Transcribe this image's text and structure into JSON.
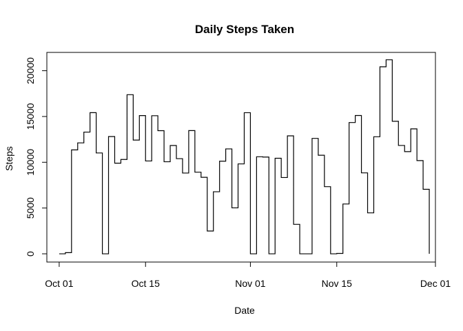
{
  "chart_data": {
    "type": "line",
    "step": true,
    "title": "Daily Steps Taken",
    "xlabel": "Date",
    "ylabel": "Steps",
    "x_ticks": [
      {
        "date": "2012-10-01",
        "label": "Oct 01"
      },
      {
        "date": "2012-10-15",
        "label": "Oct 15"
      },
      {
        "date": "2012-11-01",
        "label": "Nov 01"
      },
      {
        "date": "2012-11-15",
        "label": "Nov 15"
      },
      {
        "date": "2012-12-01",
        "label": "Dec 01"
      }
    ],
    "y_ticks": [
      0,
      5000,
      10000,
      15000,
      20000
    ],
    "xlim": [
      "2012-09-29",
      "2012-12-01"
    ],
    "ylim": [
      -900,
      22000
    ],
    "grid": false,
    "series": [
      {
        "x": [
          "2012-10-01",
          "2012-10-02",
          "2012-10-03",
          "2012-10-04",
          "2012-10-05",
          "2012-10-06",
          "2012-10-07",
          "2012-10-08",
          "2012-10-09",
          "2012-10-10",
          "2012-10-11",
          "2012-10-12",
          "2012-10-13",
          "2012-10-14",
          "2012-10-15",
          "2012-10-16",
          "2012-10-17",
          "2012-10-18",
          "2012-10-19",
          "2012-10-20",
          "2012-10-21",
          "2012-10-22",
          "2012-10-23",
          "2012-10-24",
          "2012-10-25",
          "2012-10-26",
          "2012-10-27",
          "2012-10-28",
          "2012-10-29",
          "2012-10-30",
          "2012-10-31",
          "2012-11-01",
          "2012-11-02",
          "2012-11-03",
          "2012-11-04",
          "2012-11-05",
          "2012-11-06",
          "2012-11-07",
          "2012-11-08",
          "2012-11-09",
          "2012-11-10",
          "2012-11-11",
          "2012-11-12",
          "2012-11-13",
          "2012-11-14",
          "2012-11-15",
          "2012-11-16",
          "2012-11-17",
          "2012-11-18",
          "2012-11-19",
          "2012-11-20",
          "2012-11-21",
          "2012-11-22",
          "2012-11-23",
          "2012-11-24",
          "2012-11-25",
          "2012-11-26",
          "2012-11-27",
          "2012-11-28",
          "2012-11-29",
          "2012-11-30"
        ],
        "values": [
          0,
          126,
          11352,
          12116,
          13294,
          15420,
          11015,
          0,
          12811,
          9900,
          10304,
          17382,
          12426,
          15098,
          10139,
          15084,
          13452,
          10056,
          11829,
          10395,
          8821,
          13460,
          8918,
          8355,
          2492,
          6778,
          10119,
          11458,
          5018,
          9819,
          15414,
          0,
          10600,
          10571,
          0,
          10439,
          8334,
          12883,
          3219,
          0,
          0,
          12608,
          10765,
          7336,
          0,
          41,
          5441,
          14339,
          15110,
          8841,
          4472,
          12787,
          20427,
          21194,
          14478,
          11834,
          11162,
          13646,
          10183,
          7047,
          0
        ]
      }
    ]
  }
}
